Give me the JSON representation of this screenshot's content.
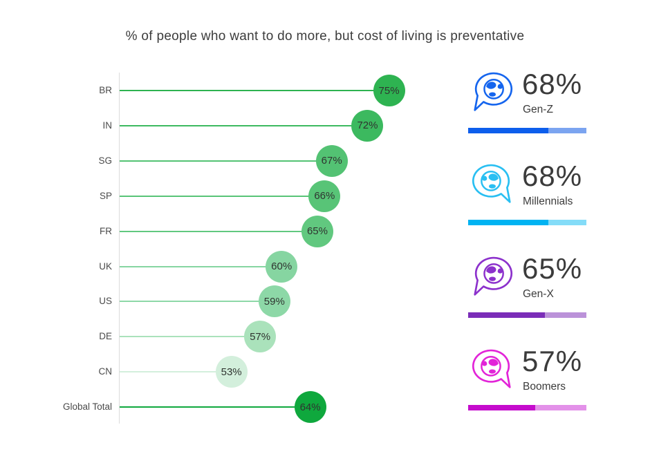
{
  "title": "% of people who want to do more, but cost of living is preventative",
  "chart_data": [
    {
      "type": "bar",
      "variant": "horizontal-lollipop",
      "title": "% of people who want to do more, but cost of living is preventative",
      "categories": [
        "BR",
        "IN",
        "SG",
        "SP",
        "FR",
        "UK",
        "US",
        "DE",
        "CN",
        "Global Total"
      ],
      "values": [
        75,
        72,
        67,
        66,
        65,
        60,
        59,
        57,
        53,
        64
      ],
      "unit": "%",
      "xlabel": "",
      "ylabel": "",
      "xlim": [
        37,
        80
      ],
      "grid": false,
      "legend": "none",
      "colors": [
        "#2eb351",
        "#3cb95f",
        "#53c273",
        "#58c477",
        "#61c87f",
        "#86d5a1",
        "#8dd8a7",
        "#aae2bb",
        "#d3efdc",
        "#0fa83d"
      ],
      "axis_color": "#dcdcdc"
    },
    {
      "type": "bar",
      "variant": "kpi-progress",
      "categories": [
        "Gen-Z",
        "Millennials",
        "Gen-X",
        "Boomers"
      ],
      "values": [
        68,
        68,
        65,
        57
      ],
      "unit": "%",
      "bar_max": 100,
      "bar_colors": [
        "#0d5eec",
        "#00b3f2",
        "#7b2db8",
        "#c50ccd"
      ],
      "track_colors": [
        "#7ba4f0",
        "#84dcf8",
        "#bb92d9",
        "#e391e9"
      ],
      "icon_colors": [
        "#1565ee",
        "#29bff2",
        "#8c31cc",
        "#e224d8"
      ],
      "icon": "speech-bubble-globe-icon",
      "icon_mirrored": [
        false,
        true,
        false,
        true
      ]
    }
  ]
}
